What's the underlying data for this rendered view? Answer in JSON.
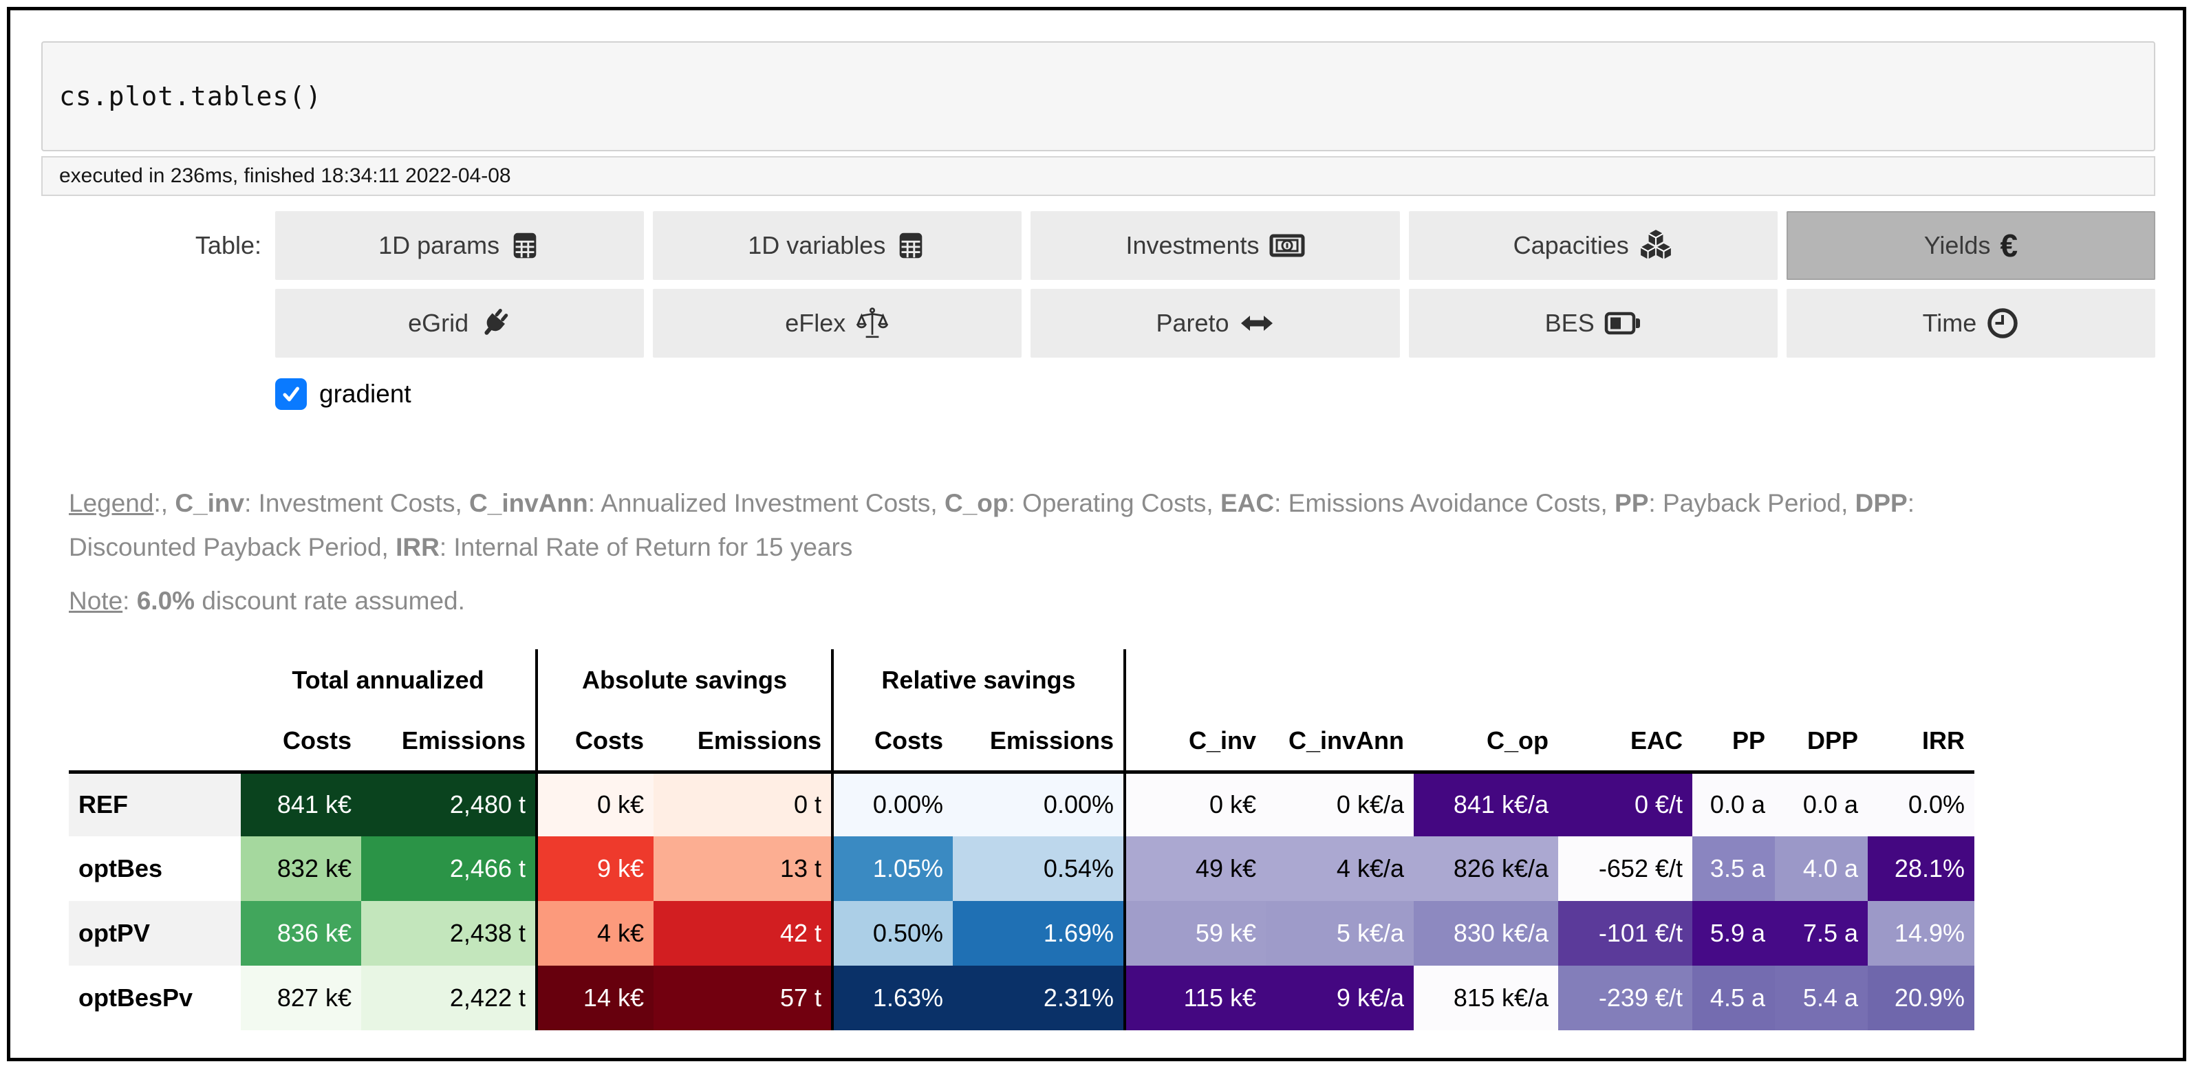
{
  "code_cell": {
    "source": "cs.plot.tables()",
    "execution_info": "executed in 236ms, finished 18:34:11 2022-04-08"
  },
  "tables_toggle": {
    "label": "Table:",
    "buttons": [
      {
        "label": "1D params",
        "icon": "table-grid-icon",
        "selected": false
      },
      {
        "label": "1D variables",
        "icon": "table-grid-icon",
        "selected": false
      },
      {
        "label": "Investments",
        "icon": "banknote-icon",
        "selected": false
      },
      {
        "label": "Capacities",
        "icon": "cubes-icon",
        "selected": false
      },
      {
        "label": "Yields",
        "icon": "euro-icon",
        "glyph": "€",
        "selected": true
      },
      {
        "label": "eGrid",
        "icon": "plug-icon",
        "selected": false
      },
      {
        "label": "eFlex",
        "icon": "scales-icon",
        "selected": false
      },
      {
        "label": "Pareto",
        "icon": "arrow-left-right-icon",
        "selected": false
      },
      {
        "label": "BES",
        "icon": "battery-icon",
        "selected": false
      },
      {
        "label": "Time",
        "icon": "clock-icon",
        "selected": false
      }
    ],
    "selected_bg": "#b5b5b5",
    "button_bg": "#ececec"
  },
  "gradient_checkbox": {
    "label": "gradient",
    "checked": true,
    "accent_color": "#0a7aff"
  },
  "legend": {
    "line_segments": [
      {
        "t": "Legend",
        "u": true
      },
      {
        "t": ":, "
      },
      {
        "t": "C_inv",
        "b": true
      },
      {
        "t": ": Investment Costs, "
      },
      {
        "t": "C_invAnn",
        "b": true
      },
      {
        "t": ": Annualized Investment Costs, "
      },
      {
        "t": "C_op",
        "b": true
      },
      {
        "t": ": Operating Costs, "
      },
      {
        "t": "EAC",
        "b": true
      },
      {
        "t": ": Emissions Avoidance Costs, "
      },
      {
        "t": "PP",
        "b": true
      },
      {
        "t": ": Payback Period, "
      },
      {
        "t": "DPP",
        "b": true
      },
      {
        "t": ": Discounted Payback Period, "
      },
      {
        "t": "IRR",
        "b": true
      },
      {
        "t": ": Internal Rate of Return for 15 years"
      }
    ],
    "note_segments": [
      {
        "t": "Note",
        "u": true
      },
      {
        "t": ": "
      },
      {
        "t": "6.0%",
        "b": true
      },
      {
        "t": " discount rate assumed."
      }
    ]
  },
  "table": {
    "group_headers": [
      {
        "label": "Total annualized"
      },
      {
        "label": "Absolute savings"
      },
      {
        "label": "Relative savings"
      }
    ],
    "column_headers": [
      "Costs",
      "Emissions",
      "Costs",
      "Emissions",
      "Costs",
      "Emissions",
      "C_inv",
      "C_invAnn",
      "C_op",
      "EAC",
      "PP",
      "DPP",
      "IRR"
    ],
    "rows": [
      {
        "label": "REF",
        "label_bg": "#f2f2f2",
        "cells": [
          {
            "text": "841 k€",
            "bg": "#0a431e",
            "fg": "#ffffff"
          },
          {
            "text": "2,480 t",
            "bg": "#0a431e",
            "fg": "#ffffff"
          },
          {
            "text": "0 k€",
            "bg": "#fff5f0",
            "fg": "#000000"
          },
          {
            "text": "0 t",
            "bg": "#ffeee4",
            "fg": "#000000"
          },
          {
            "text": "0.00%",
            "bg": "#f3f8fe",
            "fg": "#000000"
          },
          {
            "text": "0.00%",
            "bg": "#f3f8fe",
            "fg": "#000000"
          },
          {
            "text": "0 k€",
            "bg": "#fcfbfd",
            "fg": "#000000"
          },
          {
            "text": "0 k€/a",
            "bg": "#fcfbfd",
            "fg": "#000000"
          },
          {
            "text": "841 k€/a",
            "bg": "#440781",
            "fg": "#ffffff"
          },
          {
            "text": "0 €/t",
            "bg": "#440781",
            "fg": "#ffffff"
          },
          {
            "text": "0.0 a",
            "bg": "#fbfafd",
            "fg": "#000000"
          },
          {
            "text": "0.0 a",
            "bg": "#fbfafd",
            "fg": "#000000"
          },
          {
            "text": "0.0%",
            "bg": "#fbfafd",
            "fg": "#000000"
          }
        ]
      },
      {
        "label": "optBes",
        "label_bg": "#ffffff",
        "cells": [
          {
            "text": "832 k€",
            "bg": "#a5d89e",
            "fg": "#000000"
          },
          {
            "text": "2,466 t",
            "bg": "#2b9447",
            "fg": "#ffffff"
          },
          {
            "text": "9 k€",
            "bg": "#ee3a2c",
            "fg": "#ffffff"
          },
          {
            "text": "13 t",
            "bg": "#fcae92",
            "fg": "#000000"
          },
          {
            "text": "1.05%",
            "bg": "#3a8ac2",
            "fg": "#ffffff"
          },
          {
            "text": "0.54%",
            "bg": "#bdd7ec",
            "fg": "#000000"
          },
          {
            "text": "49 k€",
            "bg": "#aba8d1",
            "fg": "#000000"
          },
          {
            "text": "4 k€/a",
            "bg": "#aba8d1",
            "fg": "#000000"
          },
          {
            "text": "826 k€/a",
            "bg": "#aba8d1",
            "fg": "#000000"
          },
          {
            "text": "-652 €/t",
            "bg": "#fcfbfd",
            "fg": "#000000"
          },
          {
            "text": "3.5 a",
            "bg": "#8a85c0",
            "fg": "#ffffff"
          },
          {
            "text": "4.0 a",
            "bg": "#9b98c8",
            "fg": "#ffffff"
          },
          {
            "text": "28.1%",
            "bg": "#440781",
            "fg": "#ffffff"
          }
        ]
      },
      {
        "label": "optPV",
        "label_bg": "#f2f2f2",
        "cells": [
          {
            "text": "836 k€",
            "bg": "#41a65c",
            "fg": "#ffffff"
          },
          {
            "text": "2,438 t",
            "bg": "#c3e6bc",
            "fg": "#000000"
          },
          {
            "text": "4 k€",
            "bg": "#fc9a7c",
            "fg": "#000000"
          },
          {
            "text": "42 t",
            "bg": "#d21e21",
            "fg": "#ffffff"
          },
          {
            "text": "0.50%",
            "bg": "#accfe7",
            "fg": "#000000"
          },
          {
            "text": "1.69%",
            "bg": "#1f70b4",
            "fg": "#ffffff"
          },
          {
            "text": "59 k€",
            "bg": "#a09dca",
            "fg": "#ffffff"
          },
          {
            "text": "5 k€/a",
            "bg": "#9e9bc9",
            "fg": "#ffffff"
          },
          {
            "text": "830 k€/a",
            "bg": "#8d89c0",
            "fg": "#ffffff"
          },
          {
            "text": "-101 €/t",
            "bg": "#5b3a9a",
            "fg": "#ffffff"
          },
          {
            "text": "5.9 a",
            "bg": "#460a87",
            "fg": "#ffffff"
          },
          {
            "text": "7.5 a",
            "bg": "#460a87",
            "fg": "#ffffff"
          },
          {
            "text": "14.9%",
            "bg": "#9c99c8",
            "fg": "#ffffff"
          }
        ]
      },
      {
        "label": "optBesPv",
        "label_bg": "#ffffff",
        "cells": [
          {
            "text": "827 k€",
            "bg": "#f3faf1",
            "fg": "#000000"
          },
          {
            "text": "2,422 t",
            "bg": "#e8f6e4",
            "fg": "#000000"
          },
          {
            "text": "14 k€",
            "bg": "#67000d",
            "fg": "#ffffff"
          },
          {
            "text": "57 t",
            "bg": "#72000f",
            "fg": "#ffffff"
          },
          {
            "text": "1.63%",
            "bg": "#0a3168",
            "fg": "#ffffff"
          },
          {
            "text": "2.31%",
            "bg": "#0a3168",
            "fg": "#ffffff"
          },
          {
            "text": "115 k€",
            "bg": "#440781",
            "fg": "#ffffff"
          },
          {
            "text": "9 k€/a",
            "bg": "#440781",
            "fg": "#ffffff"
          },
          {
            "text": "815 k€/a",
            "bg": "#fcfbfd",
            "fg": "#000000"
          },
          {
            "text": "-239 €/t",
            "bg": "#837eba",
            "fg": "#ffffff"
          },
          {
            "text": "4.5 a",
            "bg": "#746cb0",
            "fg": "#ffffff"
          },
          {
            "text": "5.4 a",
            "bg": "#776fb2",
            "fg": "#ffffff"
          },
          {
            "text": "20.9%",
            "bg": "#6f67ac",
            "fg": "#ffffff"
          }
        ]
      }
    ]
  }
}
